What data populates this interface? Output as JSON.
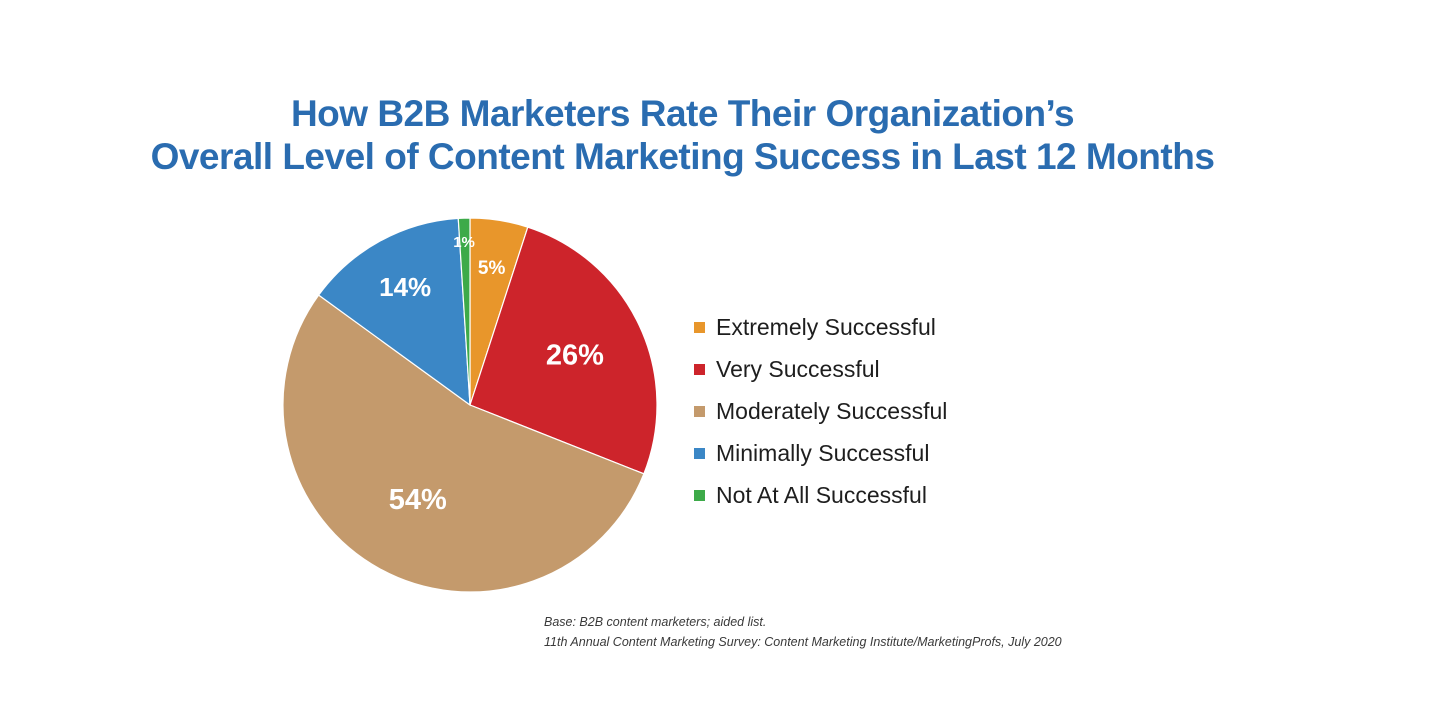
{
  "chart_data": {
    "type": "pie",
    "title_line1": "How B2B Marketers Rate Their Organization’s",
    "title_line2": "Overall Level of Content Marketing Success in Last 12 Months",
    "slices": [
      {
        "label": "Extremely Successful",
        "value": 5,
        "display": "5%",
        "color": "#e8962b"
      },
      {
        "label": "Very Successful",
        "value": 26,
        "display": "26%",
        "color": "#cd242b"
      },
      {
        "label": "Moderately Successful",
        "value": 54,
        "display": "54%",
        "color": "#c49a6c"
      },
      {
        "label": "Minimally Successful",
        "value": 14,
        "display": "14%",
        "color": "#3b87c6"
      },
      {
        "label": "Not At All Successful",
        "value": 1,
        "display": "1%",
        "color": "#3daa49"
      }
    ],
    "legend_position": "right"
  },
  "footnote": {
    "base": "Base: B2B content marketers; aided list.",
    "source": "11th Annual Content Marketing Survey: Content Marketing Institute/MarketingProfs, July 2020"
  }
}
